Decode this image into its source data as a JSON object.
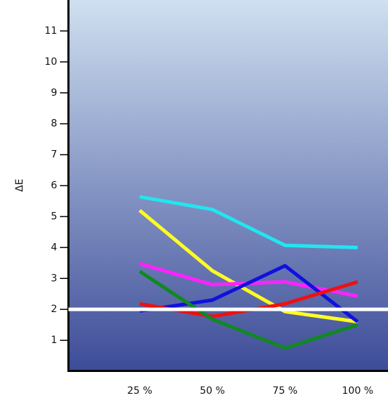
{
  "chart_data": {
    "type": "line",
    "ylabel": "ΔE",
    "categories": [
      "25 %",
      "50 %",
      "75 %",
      "100 %"
    ],
    "series": [
      {
        "color": "#22e5f0",
        "values": [
          5.64,
          5.23,
          4.07,
          4.0
        ]
      },
      {
        "color": "#ffff22",
        "values": [
          5.2,
          3.25,
          1.93,
          1.6
        ]
      },
      {
        "color": "#ff22ff",
        "values": [
          3.48,
          2.8,
          2.89,
          2.43
        ]
      },
      {
        "color": "#1010e0",
        "values": [
          1.95,
          2.3,
          3.41,
          1.6
        ]
      },
      {
        "color": "#ee1111",
        "values": [
          2.18,
          1.77,
          2.18,
          2.89
        ]
      },
      {
        "color": "#118822",
        "values": [
          3.23,
          1.68,
          0.75,
          1.5
        ]
      }
    ],
    "reference_line": {
      "value": 2,
      "color": "#ffffff"
    },
    "ylim": [
      0,
      12
    ],
    "yticks": [
      1,
      2,
      3,
      4,
      5,
      6,
      7,
      8,
      9,
      10,
      11
    ]
  }
}
